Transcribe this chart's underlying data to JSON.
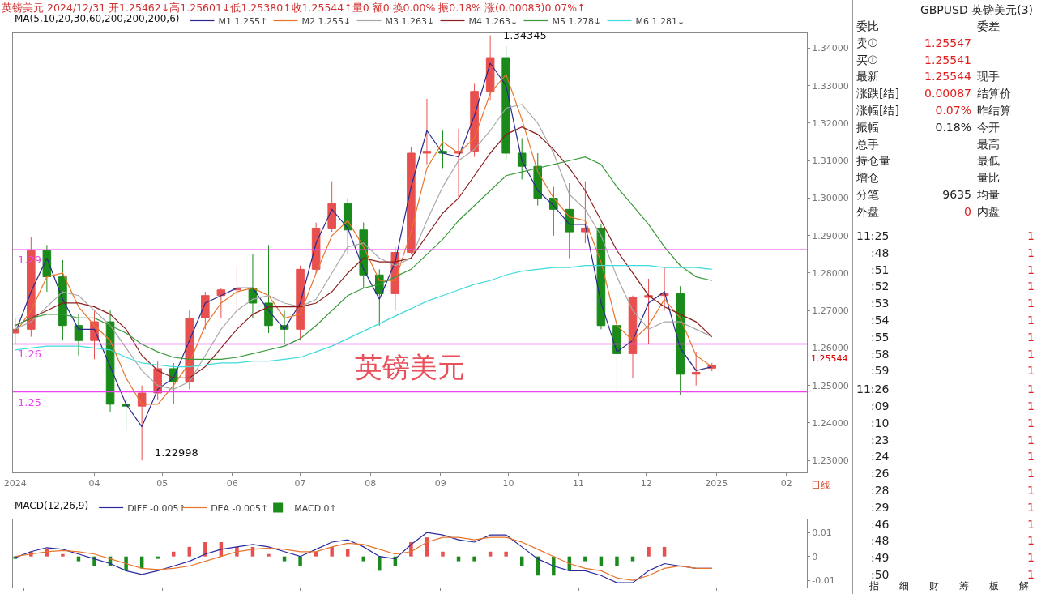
{
  "chart_data": [
    {
      "type": "candlestick",
      "title": "英镑美元 2024/12/31 开1.25462↓高1.25601↓低1.25380↑收1.25544↑量0 额0 换0.00% 振0.18% 涨(0.00083)0.07%↑",
      "legend_title": "MA(5,10,20,30,60,200,200,200,6)",
      "legend": "top left",
      "x": [
        "2024-02-26",
        "2024-03-04",
        "2024-03-11",
        "2024-03-18",
        "2024-03-25",
        "2024-04-01",
        "2024-04-08",
        "2024-04-15",
        "2024-04-22",
        "2024-04-29",
        "2024-05-06",
        "2024-05-13",
        "2024-05-20",
        "2024-05-27",
        "2024-06-03",
        "2024-06-10",
        "2024-06-17",
        "2024-06-24",
        "2024-07-01",
        "2024-07-08",
        "2024-07-15",
        "2024-07-22",
        "2024-07-29",
        "2024-08-05",
        "2024-08-12",
        "2024-08-19",
        "2024-08-26",
        "2024-09-02",
        "2024-09-09",
        "2024-09-16",
        "2024-09-23",
        "2024-09-30",
        "2024-10-07",
        "2024-10-14",
        "2024-10-21",
        "2024-10-28",
        "2024-11-04",
        "2024-11-11",
        "2024-11-18",
        "2024-11-25",
        "2024-12-02",
        "2024-12-09",
        "2024-12-16",
        "2024-12-23",
        "2024-12-30"
      ],
      "ohlc": [
        [
          1.264,
          1.268,
          1.261,
          1.265
        ],
        [
          1.265,
          1.2895,
          1.263,
          1.286
        ],
        [
          1.286,
          1.2875,
          1.275,
          1.279
        ],
        [
          1.279,
          1.2835,
          1.262,
          1.266
        ],
        [
          1.266,
          1.269,
          1.258,
          1.262
        ],
        [
          1.262,
          1.27,
          1.257,
          1.267
        ],
        [
          1.267,
          1.27,
          1.243,
          1.245
        ],
        [
          1.245,
          1.247,
          1.238,
          1.2445
        ],
        [
          1.2445,
          1.25,
          1.22998,
          1.248
        ],
        [
          1.248,
          1.2565,
          1.246,
          1.2545
        ],
        [
          1.2545,
          1.256,
          1.245,
          1.251
        ],
        [
          1.251,
          1.27,
          1.249,
          1.268
        ],
        [
          1.268,
          1.275,
          1.265,
          1.274
        ],
        [
          1.274,
          1.276,
          1.268,
          1.2755
        ],
        [
          1.2755,
          1.282,
          1.27,
          1.276
        ],
        [
          1.276,
          1.285,
          1.268,
          1.272
        ],
        [
          1.272,
          1.2875,
          1.264,
          1.266
        ],
        [
          1.266,
          1.27,
          1.261,
          1.265
        ],
        [
          1.265,
          1.282,
          1.262,
          1.281
        ],
        [
          1.281,
          1.2935,
          1.28,
          1.292
        ],
        [
          1.292,
          1.3045,
          1.291,
          1.2985
        ],
        [
          1.2985,
          1.3,
          1.285,
          1.2915
        ],
        [
          1.2915,
          1.2935,
          1.276,
          1.2795
        ],
        [
          1.2795,
          1.281,
          1.266,
          1.2745
        ],
        [
          1.2745,
          1.287,
          1.27,
          1.2855
        ],
        [
          1.2855,
          1.3135,
          1.285,
          1.312
        ],
        [
          1.312,
          1.3265,
          1.309,
          1.3125
        ],
        [
          1.3125,
          1.318,
          1.308,
          1.312
        ],
        [
          1.312,
          1.3185,
          1.3,
          1.3125
        ],
        [
          1.3125,
          1.3305,
          1.311,
          1.3285
        ],
        [
          1.3285,
          1.34345,
          1.326,
          1.3375
        ],
        [
          1.3375,
          1.3405,
          1.31,
          1.312
        ],
        [
          1.312,
          1.316,
          1.305,
          1.3085
        ],
        [
          1.3085,
          1.312,
          1.298,
          1.3
        ],
        [
          1.3,
          1.303,
          1.29,
          1.297
        ],
        [
          1.297,
          1.304,
          1.284,
          1.291
        ],
        [
          1.291,
          1.3045,
          1.288,
          1.292
        ],
        [
          1.292,
          1.293,
          1.265,
          1.266
        ],
        [
          1.266,
          1.275,
          1.2485,
          1.2585
        ],
        [
          1.2585,
          1.274,
          1.252,
          1.2735
        ],
        [
          1.2735,
          1.2785,
          1.261,
          1.274
        ],
        [
          1.274,
          1.2815,
          1.27,
          1.2745
        ],
        [
          1.2745,
          1.2765,
          1.2475,
          1.253
        ],
        [
          1.253,
          1.259,
          1.25,
          1.2535
        ],
        [
          1.25462,
          1.25601,
          1.2538,
          1.25544
        ]
      ],
      "colors": [
        "#e8504f",
        "#e8504f",
        "#1a8a1a",
        "#1a8a1a",
        "#1a8a1a",
        "#e8504f",
        "#1a8a1a",
        "#1a8a1a",
        "#e8504f",
        "#e8504f",
        "#1a8a1a",
        "#e8504f",
        "#e8504f",
        "#e8504f",
        "#e8504f",
        "#1a8a1a",
        "#1a8a1a",
        "#1a8a1a",
        "#e8504f",
        "#e8504f",
        "#e8504f",
        "#1a8a1a",
        "#1a8a1a",
        "#1a8a1a",
        "#e8504f",
        "#e8504f",
        "#e8504f",
        "#1a8a1a",
        "#e8504f",
        "#e8504f",
        "#e8504f",
        "#1a8a1a",
        "#1a8a1a",
        "#1a8a1a",
        "#1a8a1a",
        "#1a8a1a",
        "#e8504f",
        "#1a8a1a",
        "#1a8a1a",
        "#e8504f",
        "#e8504f",
        "#e8504f",
        "#1a8a1a",
        "#e8504f",
        "#e8504f"
      ],
      "series": [
        {
          "name": "M1 1.255↑",
          "type": "line",
          "color": "#2a2a8c",
          "values": [
            1.264,
            1.275,
            1.284,
            1.273,
            1.265,
            1.265,
            1.255,
            1.245,
            1.239,
            1.249,
            1.252,
            1.262,
            1.272,
            1.274,
            1.276,
            1.276,
            1.27,
            1.265,
            1.272,
            1.288,
            1.297,
            1.292,
            1.281,
            1.273,
            1.283,
            1.303,
            1.318,
            1.312,
            1.311,
            1.322,
            1.336,
            1.33,
            1.31,
            1.302,
            1.298,
            1.293,
            1.293,
            1.272,
            1.259,
            1.262,
            1.272,
            1.275,
            1.26,
            1.254,
            1.255
          ]
        },
        {
          "name": "M2 1.255↓",
          "type": "line",
          "color": "#e8742c",
          "values": [
            1.264,
            1.27,
            1.279,
            1.28,
            1.271,
            1.266,
            1.262,
            1.252,
            1.245,
            1.245,
            1.25,
            1.256,
            1.266,
            1.272,
            1.275,
            1.276,
            1.274,
            1.268,
            1.269,
            1.28,
            1.29,
            1.294,
            1.287,
            1.278,
            1.278,
            1.291,
            1.308,
            1.315,
            1.312,
            1.316,
            1.328,
            1.333,
            1.321,
            1.307,
            1.3,
            1.295,
            1.294,
            1.283,
            1.266,
            1.262,
            1.266,
            1.273,
            1.268,
            1.258,
            1.255
          ]
        },
        {
          "name": "M3 1.263↓",
          "type": "line",
          "color": "#a8a8a8",
          "values": [
            1.265,
            1.267,
            1.271,
            1.275,
            1.274,
            1.27,
            1.266,
            1.26,
            1.254,
            1.25,
            1.249,
            1.251,
            1.258,
            1.265,
            1.27,
            1.273,
            1.274,
            1.272,
            1.271,
            1.273,
            1.28,
            1.287,
            1.288,
            1.284,
            1.282,
            1.284,
            1.294,
            1.303,
            1.31,
            1.313,
            1.318,
            1.324,
            1.325,
            1.32,
            1.312,
            1.301,
            1.297,
            1.29,
            1.279,
            1.27,
            1.265,
            1.267,
            1.267,
            1.265,
            1.263
          ]
        },
        {
          "name": "M4 1.263↓",
          "type": "line",
          "color": "#8b1f1f",
          "values": [
            1.266,
            1.268,
            1.27,
            1.272,
            1.272,
            1.271,
            1.269,
            1.265,
            1.258,
            1.254,
            1.252,
            1.252,
            1.255,
            1.26,
            1.265,
            1.269,
            1.271,
            1.271,
            1.271,
            1.272,
            1.275,
            1.28,
            1.284,
            1.283,
            1.283,
            1.284,
            1.29,
            1.296,
            1.3,
            1.306,
            1.312,
            1.317,
            1.319,
            1.317,
            1.313,
            1.308,
            1.302,
            1.294,
            1.286,
            1.28,
            1.274,
            1.271,
            1.269,
            1.267,
            1.263
          ]
        },
        {
          "name": "M5 1.278↓",
          "type": "line",
          "color": "#3a9a3a",
          "values": [
            1.266,
            1.268,
            1.269,
            1.269,
            1.268,
            1.268,
            1.266,
            1.264,
            1.261,
            1.259,
            1.2575,
            1.257,
            1.257,
            1.257,
            1.2575,
            1.2585,
            1.2595,
            1.2605,
            1.2625,
            1.266,
            1.27,
            1.274,
            1.276,
            1.277,
            1.279,
            1.281,
            1.285,
            1.289,
            1.294,
            1.298,
            1.302,
            1.306,
            1.307,
            1.308,
            1.309,
            1.31,
            1.311,
            1.309,
            1.303,
            1.298,
            1.293,
            1.287,
            1.282,
            1.279,
            1.278
          ]
        },
        {
          "name": "M6 1.281↓",
          "type": "line",
          "color": "#3fdada",
          "values": [
            1.2595,
            1.26,
            1.2605,
            1.2605,
            1.2605,
            1.26,
            1.2595,
            1.2575,
            1.256,
            1.2555,
            1.255,
            1.255,
            1.2555,
            1.256,
            1.256,
            1.2565,
            1.2565,
            1.257,
            1.2575,
            1.259,
            1.2605,
            1.2625,
            1.2645,
            1.2665,
            1.2685,
            1.2705,
            1.2725,
            1.274,
            1.2755,
            1.277,
            1.278,
            1.2795,
            1.2805,
            1.281,
            1.2815,
            1.2815,
            1.282,
            1.282,
            1.282,
            1.282,
            1.282,
            1.2815,
            1.2815,
            1.2815,
            1.281
          ]
        }
      ],
      "xlim": [
        "2024-02-25",
        "2025-02-10"
      ],
      "xticks": [
        {
          "value": "2024-02-26",
          "label": "2024"
        },
        {
          "value": "2024-04-01",
          "label": "04"
        },
        {
          "value": "2024-05-01",
          "label": "05"
        },
        {
          "value": "2024-06-01",
          "label": "06"
        },
        {
          "value": "2024-07-01",
          "label": "07"
        },
        {
          "value": "2024-08-01",
          "label": "08"
        },
        {
          "value": "2024-09-01",
          "label": "09"
        },
        {
          "value": "2024-10-01",
          "label": "10"
        },
        {
          "value": "2024-11-01",
          "label": "11"
        },
        {
          "value": "2024-12-01",
          "label": "12"
        },
        {
          "value": "2025-01-01",
          "label": "2025"
        },
        {
          "value": "2025-02-01",
          "label": "02"
        }
      ],
      "ylim": [
        1.2268,
        1.344
      ],
      "yticks": [
        {
          "value": 1.23,
          "label": "1.23000"
        },
        {
          "value": 1.24,
          "label": "1.24000"
        },
        {
          "value": 1.25,
          "label": "1.25000"
        },
        {
          "value": 1.26,
          "label": "1.26000"
        },
        {
          "value": 1.27,
          "label": "1.27000"
        },
        {
          "value": 1.28,
          "label": "1.28000"
        },
        {
          "value": 1.29,
          "label": "1.29000"
        },
        {
          "value": 1.3,
          "label": "1.30000"
        },
        {
          "value": 1.31,
          "label": "1.31000"
        },
        {
          "value": 1.32,
          "label": "1.32000"
        },
        {
          "value": 1.33,
          "label": "1.33000"
        },
        {
          "value": 1.34,
          "label": "1.34000"
        }
      ],
      "ref_lines": [
        {
          "axis": "y",
          "value": 1.2862,
          "label": "1.29",
          "color": "#ee44ee"
        },
        {
          "axis": "y",
          "value": 1.2611,
          "label": "1.26",
          "color": "#ee44ee"
        },
        {
          "axis": "y",
          "value": 1.2483,
          "label": "1.25",
          "color": "#ee44ee"
        }
      ],
      "annotations": [
        {
          "text": "1.22998",
          "x": "2024-04-22",
          "y": 1.22998
        },
        {
          "text": "1.34345",
          "x": "2024-09-23",
          "y": 1.34345
        },
        "1.25544",
        "英镑美元",
        "日线"
      ]
    },
    {
      "type": "bar",
      "legend_title": "MACD(12,26,9)",
      "legend": "top left",
      "tick_labels": "y",
      "x": [
        "2024-02-26",
        "2024-03-04",
        "2024-03-11",
        "2024-03-18",
        "2024-03-25",
        "2024-04-01",
        "2024-04-08",
        "2024-04-15",
        "2024-04-22",
        "2024-04-29",
        "2024-05-06",
        "2024-05-13",
        "2024-05-20",
        "2024-05-27",
        "2024-06-03",
        "2024-06-10",
        "2024-06-17",
        "2024-06-24",
        "2024-07-01",
        "2024-07-08",
        "2024-07-15",
        "2024-07-22",
        "2024-07-29",
        "2024-08-05",
        "2024-08-12",
        "2024-08-19",
        "2024-08-26",
        "2024-09-02",
        "2024-09-09",
        "2024-09-16",
        "2024-09-23",
        "2024-09-30",
        "2024-10-07",
        "2024-10-14",
        "2024-10-21",
        "2024-10-28",
        "2024-11-04",
        "2024-11-11",
        "2024-11-18",
        "2024-11-25",
        "2024-12-02",
        "2024-12-09",
        "2024-12-16",
        "2024-12-23",
        "2024-12-30"
      ],
      "series": [
        {
          "name": "DIFF -0.005↑",
          "type": "line",
          "color": "#2a2aa0",
          "values": [
            -0.0005,
            0.002,
            0.0037,
            0.003,
            0.001,
            -0.001,
            -0.003,
            -0.006,
            -0.0075,
            -0.006,
            -0.004,
            -0.002,
            0.001,
            0.003,
            0.004,
            0.005,
            0.004,
            0.002,
            0.0,
            0.003,
            0.006,
            0.007,
            0.004,
            0.0,
            -0.001,
            0.005,
            0.01,
            0.009,
            0.007,
            0.006,
            0.009,
            0.009,
            0.004,
            -0.001,
            -0.004,
            -0.006,
            -0.006,
            -0.008,
            -0.011,
            -0.011,
            -0.006,
            -0.003,
            -0.004,
            -0.005,
            -0.005
          ]
        },
        {
          "name": "DEA -0.005↑",
          "type": "line",
          "color": "#e8742c",
          "values": [
            0.0,
            0.001,
            0.002,
            0.0025,
            0.002,
            0.001,
            -0.001,
            -0.003,
            -0.005,
            -0.0055,
            -0.005,
            -0.004,
            -0.002,
            0.0,
            0.002,
            0.003,
            0.0035,
            0.003,
            0.002,
            0.002,
            0.004,
            0.0055,
            0.005,
            0.003,
            0.001,
            0.002,
            0.006,
            0.008,
            0.008,
            0.007,
            0.008,
            0.008,
            0.006,
            0.003,
            0.0,
            -0.003,
            -0.005,
            -0.006,
            -0.009,
            -0.01,
            -0.008,
            -0.005,
            -0.004,
            -0.005,
            -0.005
          ]
        },
        {
          "name": "MACD 0↑",
          "type": "bar",
          "colors": [
            "#1a8a1a",
            "#e8504f",
            "#e8504f",
            "#e8504f",
            "#1a8a1a",
            "#1a8a1a",
            "#1a8a1a",
            "#1a8a1a",
            "#1a8a1a",
            "#1a8a1a",
            "#e8504f",
            "#e8504f",
            "#e8504f",
            "#e8504f",
            "#e8504f",
            "#e8504f",
            "#e8504f",
            "#1a8a1a",
            "#1a8a1a",
            "#e8504f",
            "#e8504f",
            "#e8504f",
            "#1a8a1a",
            "#1a8a1a",
            "#1a8a1a",
            "#e8504f",
            "#e8504f",
            "#e8504f",
            "#1a8a1a",
            "#1a8a1a",
            "#e8504f",
            "#e8504f",
            "#1a8a1a",
            "#1a8a1a",
            "#1a8a1a",
            "#1a8a1a",
            "#1a8a1a",
            "#1a8a1a",
            "#1a8a1a",
            "#1a8a1a",
            "#e8504f",
            "#e8504f",
            "#e8504f",
            "#e8504f",
            "#e8504f"
          ],
          "values": [
            -0.001,
            0.002,
            0.0034,
            0.001,
            -0.002,
            -0.004,
            -0.004,
            -0.006,
            -0.005,
            -0.001,
            0.002,
            0.004,
            0.006,
            0.006,
            0.004,
            0.004,
            0.001,
            -0.002,
            -0.004,
            0.002,
            0.004,
            0.003,
            -0.002,
            -0.006,
            -0.004,
            0.006,
            0.008,
            0.002,
            -0.002,
            -0.002,
            0.002,
            0.002,
            -0.004,
            -0.008,
            -0.008,
            -0.006,
            -0.002,
            -0.004,
            -0.004,
            -0.002,
            0.004,
            0.004,
            0.0,
            0.0,
            0.0
          ]
        }
      ],
      "xlim": [
        "2024-02-25",
        "2025-02-10"
      ],
      "ylim": [
        -0.013,
        0.0155
      ],
      "yticks": [
        0.01,
        0,
        -0.01
      ]
    },
    {
      "type": "other",
      "title": "GBPUSD 英镑美元(3)",
      "annotations": [
        "委比",
        "委差",
        "卖①",
        "1.25547",
        "买①",
        "1.25541",
        "最新",
        "1.25544",
        "现手",
        "涨跌[结]",
        "0.00087",
        "结算价",
        "涨幅[结]",
        "0.07%",
        "昨结算",
        "振幅",
        "0.18%",
        "今开",
        "总手",
        "最高",
        "持仓量",
        "最低",
        "增仓",
        "量比",
        "分笔",
        "9635",
        "均量",
        "外盘",
        "0",
        "内盘",
        "11:25",
        "1",
        ":48",
        "1",
        ":51",
        "1",
        ":52",
        "1",
        ":53",
        "1",
        ":54",
        "1",
        ":55",
        "1",
        ":58",
        "1",
        ":59",
        "1",
        "11:26",
        "1",
        ":09",
        "1",
        ":10",
        "1",
        ":23",
        "1",
        ":24",
        "1",
        ":26",
        "1",
        ":28",
        "1",
        ":29",
        "1",
        ":46",
        "1",
        ":48",
        "1",
        ":49",
        "1",
        ":50",
        "1",
        "指",
        "细",
        "财",
        "筹",
        "板",
        "解"
      ]
    }
  ]
}
